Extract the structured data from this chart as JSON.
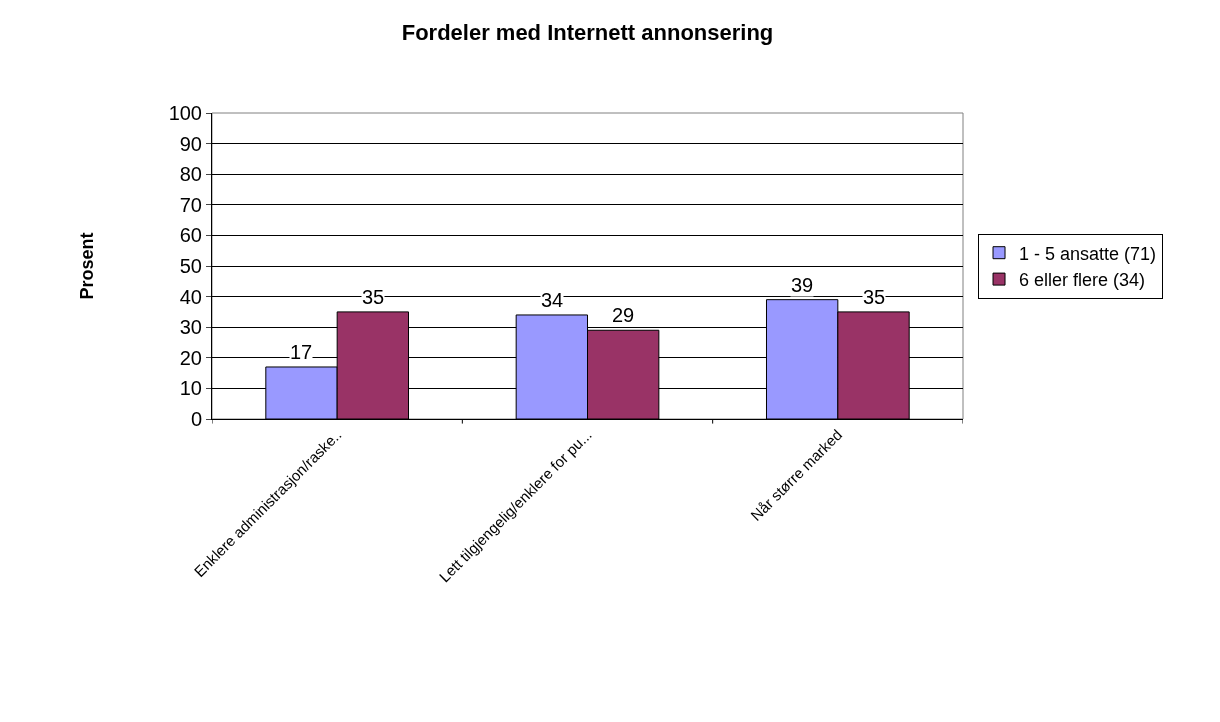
{
  "chart_data": {
    "type": "bar",
    "title": "Fordeler med Internett annonsering",
    "ylabel": "Prosent",
    "categories": [
      "Enklere administrasjon/raske..",
      "Lett tilgjengelig/enklere for pu...",
      "Når større marked"
    ],
    "series": [
      {
        "name": "1 - 5 ansatte (71)",
        "color": "#9999ff",
        "values": [
          17,
          34,
          39
        ]
      },
      {
        "name": "6 eller flere (34)",
        "color": "#993366",
        "values": [
          35,
          29,
          35
        ]
      }
    ],
    "ylim": [
      0,
      100
    ],
    "yticks": [
      0,
      10,
      20,
      30,
      40,
      50,
      60,
      70,
      80,
      90,
      100
    ],
    "grid": "y",
    "legend": "right",
    "data_labels": true
  }
}
